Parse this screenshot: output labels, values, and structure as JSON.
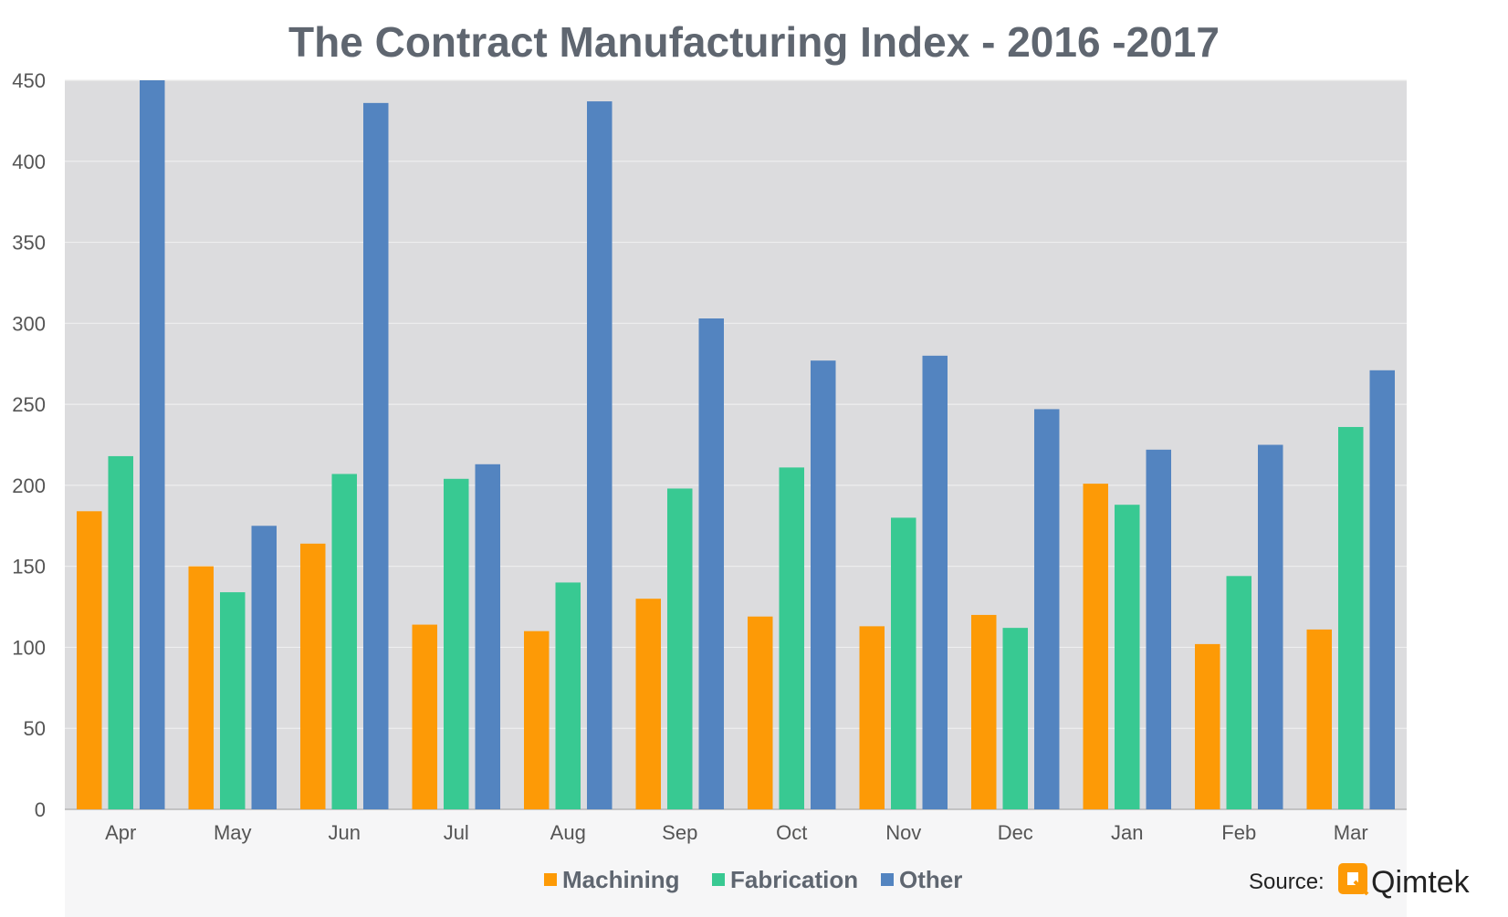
{
  "chart_data": {
    "type": "bar",
    "title": "The Contract Manufacturing Index - 2016 -2017",
    "xlabel": "",
    "ylabel": "",
    "ylim": [
      0,
      450
    ],
    "yticks": [
      0,
      50,
      100,
      150,
      200,
      250,
      300,
      350,
      400,
      450
    ],
    "categories": [
      "Apr",
      "May",
      "Jun",
      "Jul",
      "Aug",
      "Sep",
      "Oct",
      "Nov",
      "Dec",
      "Jan",
      "Feb",
      "Mar"
    ],
    "series": [
      {
        "name": "Machining",
        "color": "#fd9a06",
        "values": [
          184,
          150,
          164,
          114,
          110,
          130,
          119,
          113,
          120,
          201,
          102,
          111
        ]
      },
      {
        "name": "Fabrication",
        "color": "#38c992",
        "values": [
          218,
          134,
          207,
          204,
          140,
          198,
          211,
          180,
          112,
          188,
          144,
          236
        ]
      },
      {
        "name": "Other",
        "color": "#5384c0",
        "values": [
          450,
          175,
          436,
          213,
          437,
          303,
          277,
          280,
          247,
          222,
          225,
          271
        ]
      }
    ],
    "grid": true,
    "legend_position": "bottom"
  },
  "source": {
    "label": "Source:",
    "brand": "Qimtek",
    "accent_color": "#fd9a06"
  }
}
